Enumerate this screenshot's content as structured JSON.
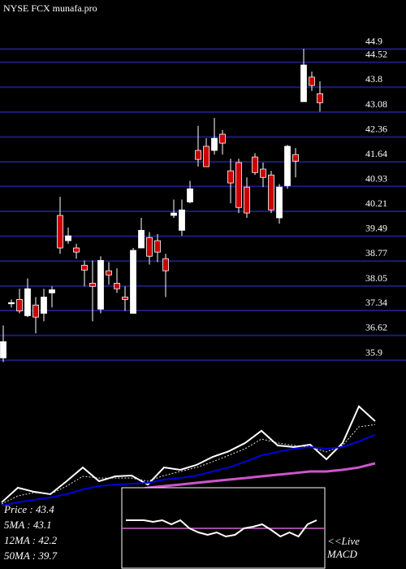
{
  "chart_data": [
    {
      "type": "candlestick",
      "title": "NYSE FCX munafa.pro",
      "open": [
        35.97,
        37.55,
        37.66,
        37.19,
        37.5,
        37.26,
        37.85,
        40.09,
        39.36,
        39.15,
        38.65,
        38.13,
        37.38,
        38.49,
        38.13,
        37.73,
        37.26,
        39.15,
        39.45,
        39.36,
        38.84,
        40.09,
        39.66,
        40.48,
        41.97,
        42.09,
        41.97,
        42.44,
        41.38,
        41.62,
        40.91,
        41.78,
        41.43,
        41.26,
        40.02,
        40.95,
        41.85,
        43.38,
        44.09,
        43.61
      ],
      "high": [
        36.91,
        37.66,
        37.97,
        38.27,
        37.73,
        37.97,
        38.04,
        40.63,
        39.74,
        39.27,
        38.79,
        38.79,
        38.91,
        38.74,
        38.56,
        38.04,
        39.15,
        40.02,
        39.61,
        39.55,
        38.98,
        40.55,
        40.55,
        41.09,
        42.68,
        42.32,
        42.91,
        42.56,
        41.73,
        41.73,
        41.19,
        41.89,
        41.62,
        41.38,
        41.0,
        42.13,
        42.04,
        44.91,
        44.25,
        43.97
      ],
      "low": [
        35.85,
        37.43,
        37.26,
        37.15,
        36.68,
        37.03,
        37.43,
        38.98,
        39.27,
        38.84,
        38.04,
        37.03,
        37.26,
        38.09,
        37.85,
        37.33,
        37.26,
        39.15,
        38.67,
        38.74,
        37.73,
        40.02,
        39.5,
        40.44,
        41.5,
        41.5,
        41.85,
        41.85,
        40.44,
        40.16,
        40.02,
        41.26,
        40.91,
        40.16,
        39.85,
        40.86,
        41.19,
        43.38,
        43.69,
        43.09
      ],
      "close": [
        36.44,
        37.57,
        37.33,
        37.97,
        37.15,
        37.73,
        37.94,
        39.15,
        39.5,
        39.03,
        38.51,
        38.04,
        38.79,
        38.37,
        37.97,
        37.66,
        39.08,
        39.66,
        38.91,
        39.03,
        38.49,
        40.16,
        40.25,
        40.86,
        41.71,
        41.5,
        42.32,
        42.18,
        41.03,
        40.32,
        40.16,
        41.33,
        41.19,
        40.25,
        40.91,
        42.09,
        41.66,
        44.44,
        43.85,
        43.35
      ],
      "up_color": "#ffffff",
      "down_color": "#cc0000",
      "grid_color": "#1c1c78",
      "ylim": [
        35.86,
        46.32
      ],
      "yticks": [
        44.9,
        44.52,
        43.8,
        43.08,
        42.36,
        41.64,
        40.93,
        40.21,
        39.49,
        38.77,
        38.05,
        37.34,
        36.62,
        35.9
      ],
      "grid": true
    },
    {
      "type": "line",
      "ylim": [
        33.99,
        46.84
      ],
      "series": [
        {
          "name": "Price   : 43.4",
          "color": "#ffffff",
          "style": "solid",
          "values": [
            36.27,
            37.56,
            37.2,
            36.99,
            38.13,
            39.34,
            38.13,
            38.56,
            38.63,
            37.84,
            39.34,
            39.13,
            39.56,
            40.27,
            40.77,
            41.49,
            42.56,
            41.27,
            41.13,
            41.34,
            40.06,
            41.49,
            44.7,
            43.4
          ]
        },
        {
          "name": "5MA   : 43.1",
          "color": "#dddddd",
          "style": "dotted",
          "values": [
            36.13,
            36.84,
            37.13,
            36.99,
            37.7,
            38.56,
            38.41,
            38.41,
            38.41,
            38.13,
            38.63,
            38.99,
            39.34,
            39.84,
            40.41,
            40.99,
            41.84,
            41.49,
            41.27,
            41.13,
            40.7,
            41.27,
            42.91,
            43.1
          ]
        },
        {
          "name": "12MA : 42.2",
          "color": "#0000dd",
          "style": "solid",
          "values": [
            35.99,
            36.27,
            36.49,
            36.7,
            36.99,
            37.41,
            37.7,
            37.84,
            37.91,
            37.99,
            38.27,
            38.41,
            38.63,
            38.99,
            39.34,
            39.84,
            40.41,
            40.7,
            40.99,
            41.13,
            40.99,
            41.13,
            41.63,
            42.2
          ]
        },
        {
          "name": "50MA : 39.7",
          "color": "#cc55cc",
          "style": "thick",
          "values": [
            null,
            null,
            null,
            null,
            null,
            null,
            null,
            null,
            37.27,
            37.56,
            37.7,
            37.84,
            37.99,
            38.13,
            38.27,
            38.41,
            38.56,
            38.7,
            38.84,
            38.99,
            38.99,
            39.13,
            39.34,
            39.7
          ]
        }
      ]
    },
    {
      "type": "macd",
      "note_lines": [
        "<<Live",
        "MACD"
      ],
      "ylim": [
        -5,
        5
      ],
      "color": "#ffffff",
      "values": [
        1,
        1,
        1,
        0.8,
        1,
        0.5,
        1,
        0,
        -0.5,
        -0.8,
        -0.5,
        -1,
        -0.8,
        0,
        0.2,
        0.5,
        -0.2,
        -1,
        -0.5,
        -1,
        0.5,
        1
      ]
    }
  ]
}
